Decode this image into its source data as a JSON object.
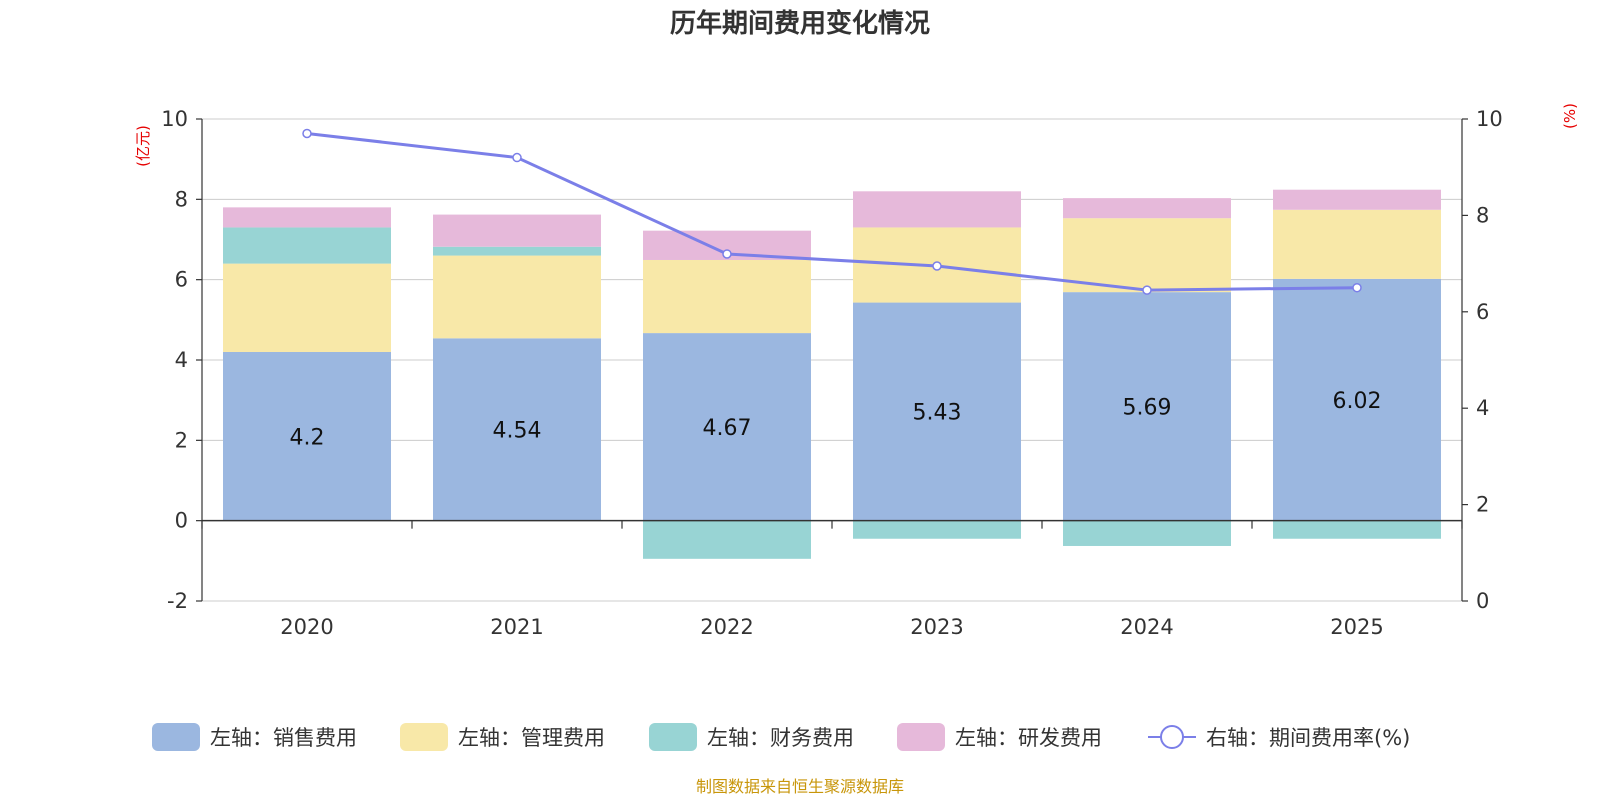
{
  "chart_data": {
    "type": "bar",
    "title": "历年期间费用变化情况",
    "categories": [
      "2020",
      "2021",
      "2022",
      "2023",
      "2024",
      "2025"
    ],
    "y_left": {
      "unit": "(亿元)",
      "min": -2,
      "max": 10,
      "ticks": [
        "-2",
        "0",
        "2",
        "4",
        "6",
        "8",
        "10"
      ]
    },
    "y_right": {
      "unit": "(%)",
      "min": 0,
      "max": 10,
      "ticks": [
        "0",
        "2",
        "4",
        "6",
        "8",
        "10"
      ]
    },
    "series": [
      {
        "name": "左轴：销售费用",
        "axis": "left",
        "kind": "bar",
        "color": "#9bb7e0",
        "values": [
          4.2,
          4.54,
          4.67,
          5.43,
          5.69,
          6.02
        ],
        "labels": [
          "4.2",
          "4.54",
          "4.67",
          "5.43",
          "5.69",
          "6.02"
        ]
      },
      {
        "name": "左轴：管理费用",
        "axis": "left",
        "kind": "bar",
        "color": "#f8e8a8",
        "values": [
          2.2,
          2.06,
          1.82,
          1.87,
          1.84,
          1.72
        ]
      },
      {
        "name": "左轴：财务费用",
        "axis": "left",
        "kind": "bar",
        "color": "#98d4d4",
        "values": [
          0.9,
          0.22,
          -0.95,
          -0.45,
          -0.63,
          -0.45
        ]
      },
      {
        "name": "左轴：研发费用",
        "axis": "left",
        "kind": "bar",
        "color": "#e6b9da",
        "values": [
          0.5,
          0.8,
          0.73,
          0.9,
          0.5,
          0.5
        ]
      },
      {
        "name": "右轴：期间费用率(%)",
        "axis": "right",
        "kind": "line",
        "color": "#7b7fe8",
        "values": [
          9.7,
          9.2,
          7.2,
          6.95,
          6.45,
          6.5
        ]
      }
    ],
    "source": "制图数据来自恒生聚源数据库"
  }
}
